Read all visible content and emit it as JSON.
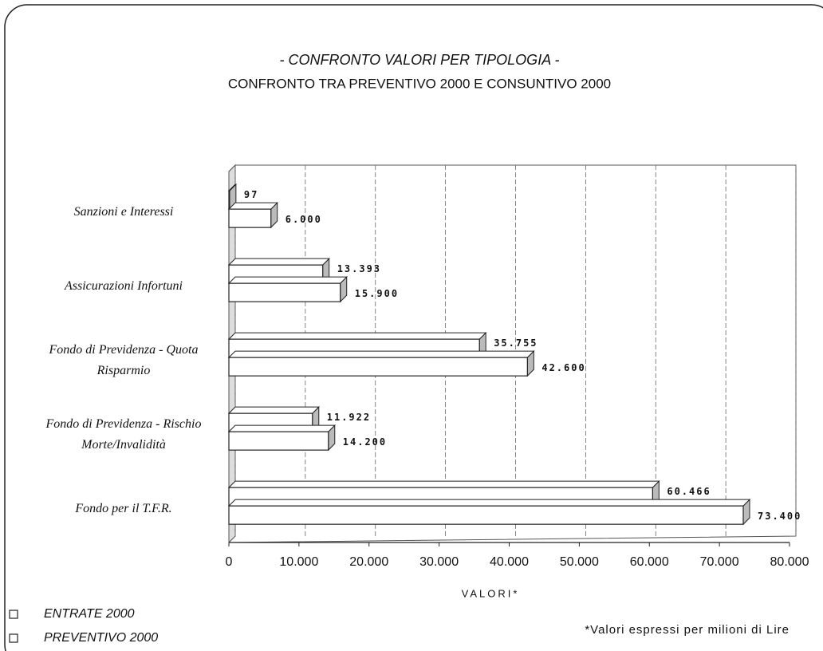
{
  "chart_data": {
    "type": "bar",
    "orientation": "horizontal",
    "title": "- CONFRONTO VALORI PER TIPOLOGIA -",
    "subtitle": "CONFRONTO TRA PREVENTIVO 2000 E CONSUNTIVO 2000",
    "x_label": "VALORI*",
    "note": "*Valori espressi per milioni di Lire",
    "categories": [
      "Sanzioni e Interessi",
      "Assicurazioni Infortuni",
      "Fondo di Previdenza - Quota Risparmio",
      "Fondo di Previdenza - Rischio Morte/Invalidità",
      "Fondo per il T.F.R."
    ],
    "series": [
      {
        "name": "ENTRATE 2000",
        "color": "#ffffff",
        "values": [
          97,
          13393,
          35755,
          11922,
          60466
        ],
        "value_labels": [
          "97",
          "13.393",
          "35.755",
          "11.922",
          "60.466"
        ]
      },
      {
        "name": "PREVENTIVO 2000",
        "color": "#ffffff",
        "values": [
          6000,
          15900,
          42600,
          14200,
          73400
        ],
        "value_labels": [
          "6.000",
          "15.900",
          "42.600",
          "14.200",
          "73.400"
        ]
      }
    ],
    "xlim": [
      0,
      80000
    ],
    "xticks": [
      0,
      {
        "value": 10000,
        "label": "10.000"
      },
      {
        "value": 20000,
        "label": "20.000"
      },
      {
        "value": 30000,
        "label": "30.000"
      },
      {
        "value": 40000,
        "label": "40.000"
      },
      {
        "value": 50000,
        "label": "50.000"
      },
      {
        "value": 60000,
        "label": "60.000"
      },
      {
        "value": 70000,
        "label": "70.000"
      },
      {
        "value": 80000,
        "label": "80.000"
      }
    ],
    "grid": true,
    "legend": "bottom-left"
  }
}
